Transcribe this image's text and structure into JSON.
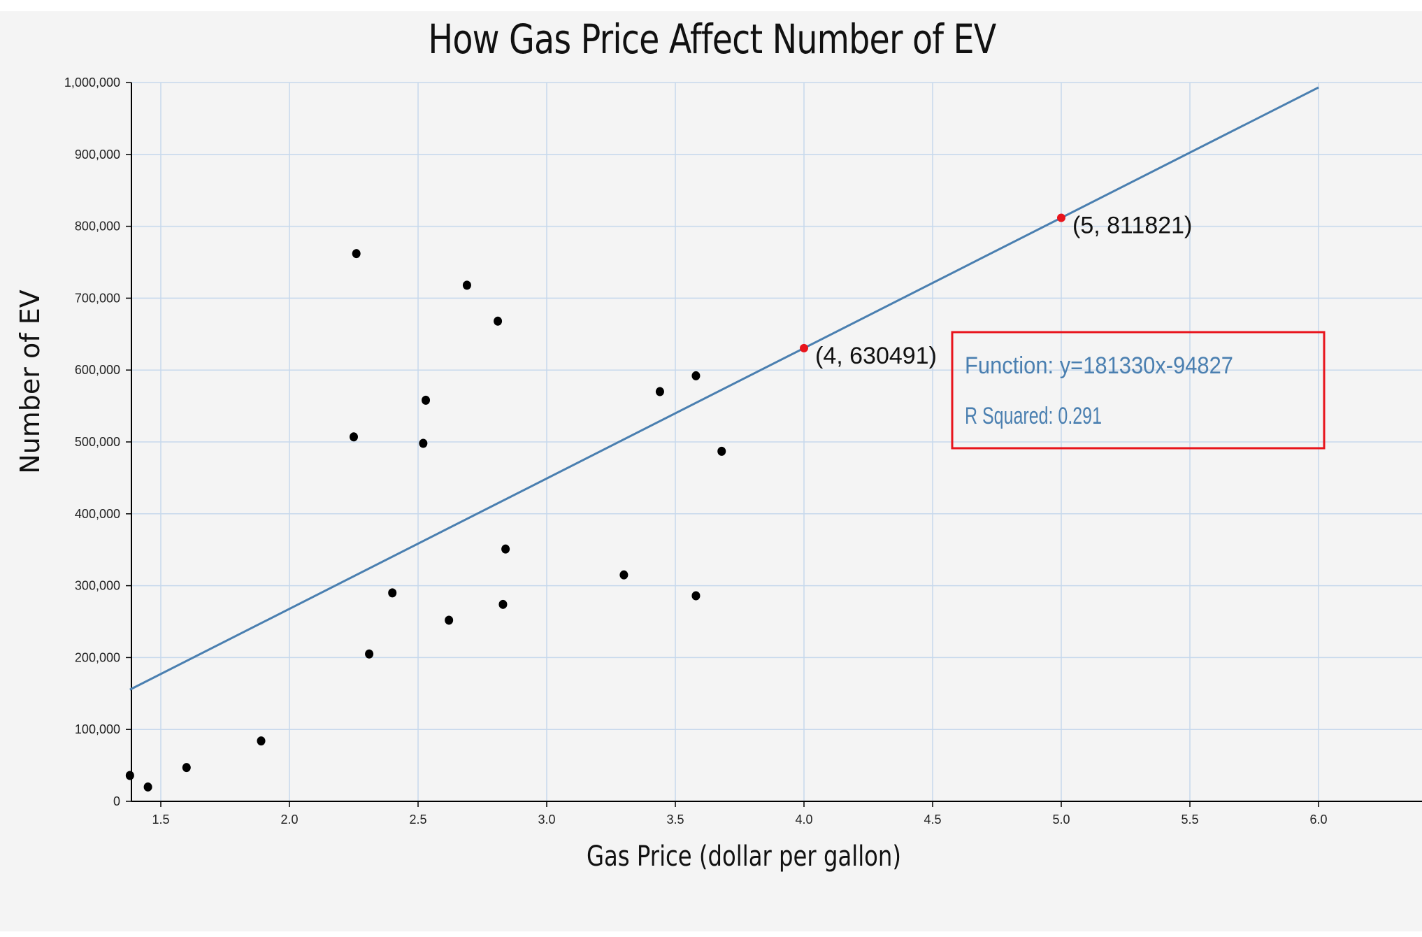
{
  "chart_data": {
    "type": "scatter",
    "title": "How Gas Price Affect Number of EV",
    "xlabel": "Gas Price (dollar per gallon)",
    "ylabel": "Number of EV",
    "xlim": [
      1.38,
      6.4
    ],
    "ylim": [
      0,
      1000000
    ],
    "x_ticks": [
      1.5,
      2.0,
      2.5,
      3.0,
      3.5,
      4.0,
      4.5,
      5.0,
      5.5,
      6.0
    ],
    "x_tick_labels": [
      "1.5",
      "2.0",
      "2.5",
      "3.0",
      "3.5",
      "4.0",
      "4.5",
      "5.0",
      "5.5",
      "6.0"
    ],
    "y_ticks": [
      0,
      100000,
      200000,
      300000,
      400000,
      500000,
      600000,
      700000,
      800000,
      900000,
      1000000
    ],
    "y_tick_labels": [
      "0",
      "100,000",
      "200,000",
      "300,000",
      "400,000",
      "500,000",
      "600,000",
      "700,000",
      "800,000",
      "900,000",
      "1,000,000"
    ],
    "grid": true,
    "points": [
      {
        "x": 1.38,
        "y": 36000
      },
      {
        "x": 1.45,
        "y": 20000
      },
      {
        "x": 1.6,
        "y": 47000
      },
      {
        "x": 1.89,
        "y": 84000
      },
      {
        "x": 2.25,
        "y": 507000
      },
      {
        "x": 2.26,
        "y": 762000
      },
      {
        "x": 2.31,
        "y": 205000
      },
      {
        "x": 2.4,
        "y": 290000
      },
      {
        "x": 2.52,
        "y": 498000
      },
      {
        "x": 2.53,
        "y": 558000
      },
      {
        "x": 2.62,
        "y": 252000
      },
      {
        "x": 2.69,
        "y": 718000
      },
      {
        "x": 2.81,
        "y": 668000
      },
      {
        "x": 2.83,
        "y": 274000
      },
      {
        "x": 2.84,
        "y": 351000
      },
      {
        "x": 3.3,
        "y": 315000
      },
      {
        "x": 3.44,
        "y": 570000
      },
      {
        "x": 3.58,
        "y": 592000
      },
      {
        "x": 3.58,
        "y": 286000
      },
      {
        "x": 3.68,
        "y": 487000
      }
    ],
    "regression": {
      "slope": 181330,
      "intercept": -94827,
      "x_range": [
        1.38,
        6.0
      ],
      "color": "#4a7fb0",
      "function_label": "Function: y=181330x-94827",
      "r_squared_label": "R Squared: 0.291"
    },
    "highlighted_points": [
      {
        "x": 4,
        "y": 630491,
        "label": "(4, 630491)"
      },
      {
        "x": 5,
        "y": 811821,
        "label": "(5, 811821)"
      }
    ],
    "colors": {
      "points": "#000000",
      "highlight": "#e8141c",
      "grid": "#c6d8ec",
      "box": "#e8141c",
      "background": "#f4f4f4"
    }
  }
}
